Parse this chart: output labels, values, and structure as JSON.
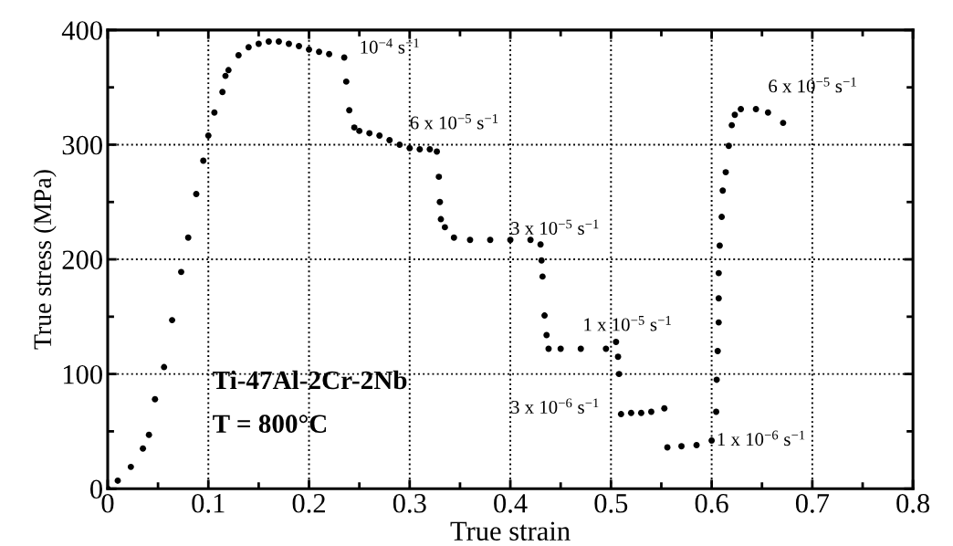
{
  "chart_data": {
    "type": "scatter",
    "xlabel": "True strain",
    "ylabel": "True stress (MPa)",
    "xlim": [
      0,
      0.8
    ],
    "ylim": [
      0,
      400
    ],
    "xticks": [
      0,
      0.1,
      0.2,
      0.3,
      0.4,
      0.5,
      0.6,
      0.7,
      0.8
    ],
    "yticks": [
      0,
      100,
      200,
      300,
      400
    ],
    "grid": true,
    "marker": "circle",
    "series": [
      {
        "color": "#000000",
        "x": [
          0,
          0.01,
          0.023,
          0.035,
          0.041,
          0.047,
          0.056,
          0.064,
          0.073,
          0.08,
          0.088,
          0.095,
          0.1,
          0.106,
          0.114,
          0.117,
          0.12,
          0.13,
          0.14,
          0.15,
          0.16,
          0.17,
          0.18,
          0.19,
          0.2,
          0.21,
          0.22,
          0.235,
          0.237,
          0.24,
          0.245,
          0.25,
          0.26,
          0.27,
          0.28,
          0.29,
          0.3,
          0.31,
          0.32,
          0.327,
          0.329,
          0.33,
          0.331,
          0.335,
          0.344,
          0.36,
          0.38,
          0.4,
          0.42,
          0.43,
          0.431,
          0.432,
          0.434,
          0.436,
          0.438,
          0.45,
          0.47,
          0.495,
          0.505,
          0.507,
          0.508,
          0.51,
          0.52,
          0.53,
          0.54,
          0.553,
          0.556,
          0.57,
          0.585,
          0.6,
          0.6045,
          0.605,
          0.606,
          0.607,
          0.607,
          0.607,
          0.608,
          0.61,
          0.611,
          0.614,
          0.617,
          0.62,
          0.623,
          0.629,
          0.644,
          0.656,
          0.671
        ],
        "values": [
          0,
          7,
          19,
          35,
          47,
          78,
          106,
          147,
          189,
          219,
          257,
          286,
          308,
          328,
          346,
          360,
          365,
          378,
          385,
          388,
          390,
          390,
          388,
          386,
          383,
          381,
          379,
          376,
          355,
          330,
          315,
          312,
          310,
          308,
          304,
          300,
          297,
          296,
          296,
          294,
          272,
          250,
          235,
          228,
          219,
          217,
          217,
          217,
          217,
          213,
          199,
          185,
          151,
          134,
          122,
          122,
          122,
          122,
          128,
          115,
          100,
          65,
          66,
          66,
          67,
          70,
          36,
          37,
          38,
          42,
          67,
          95,
          120,
          145,
          166,
          188,
          212,
          237,
          260,
          276,
          299,
          317,
          326,
          331,
          331,
          328,
          319
        ]
      }
    ],
    "annotations": [
      "10$^{−4}$ s$^{−1}$",
      "6 x 10$^{−5}$ s$^{−1}$",
      "3 x 10$^{−5}$ s$^{−1}$",
      "1 x 10$^{−5}$ s$^{−1}$",
      "3 x 10$^{−6}$ s$^{−1}$",
      "1 x 10$^{−6}$ s$^{−1}$",
      "6 x 10$^{−5}$ s$^{−1}$",
      "Ti-47Al-2Cr-2Nb",
      "T = 800°C"
    ]
  }
}
